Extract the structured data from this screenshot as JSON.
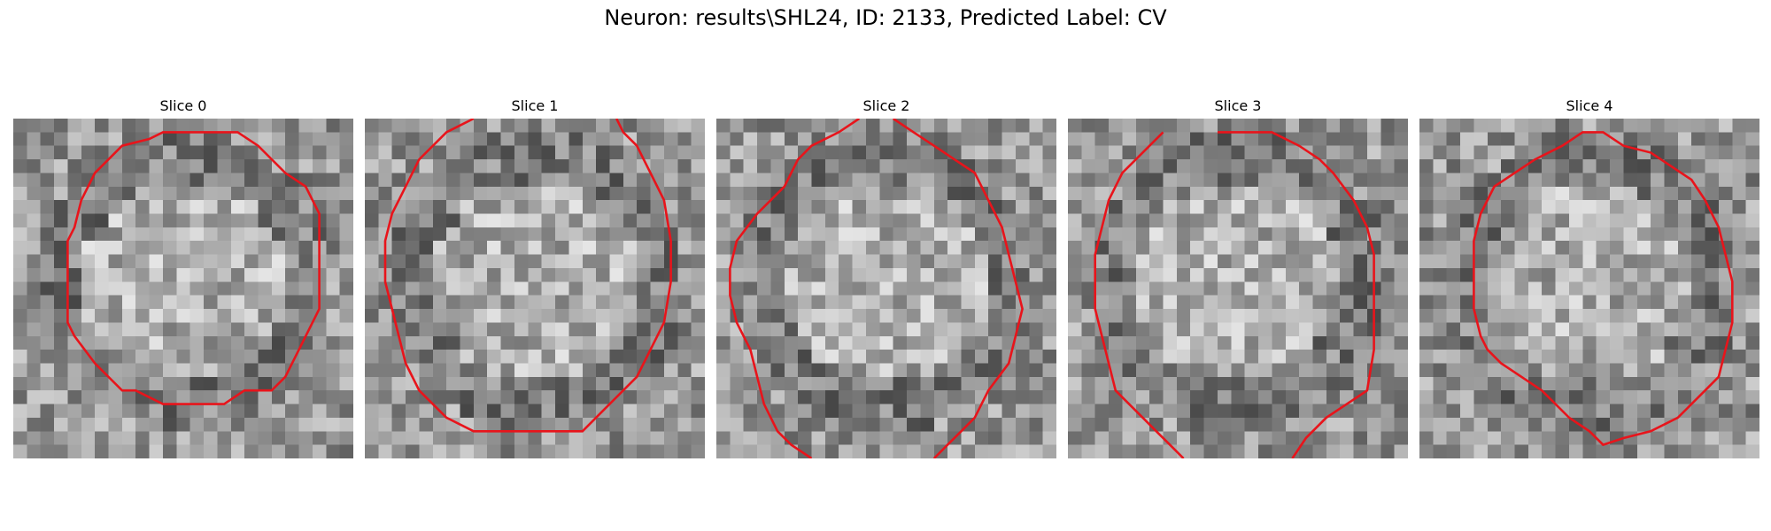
{
  "figure": {
    "title": "Neuron: results\\SHL24, ID: 2133, Predicted Label: CV"
  },
  "contour_color": "#e8141b",
  "slices": [
    {
      "title": "Slice 0",
      "seed": 11
    },
    {
      "title": "Slice 1",
      "seed": 23
    },
    {
      "title": "Slice 2",
      "seed": 37
    },
    {
      "title": "Slice 3",
      "seed": 53
    },
    {
      "title": "Slice 4",
      "seed": 71
    }
  ]
}
